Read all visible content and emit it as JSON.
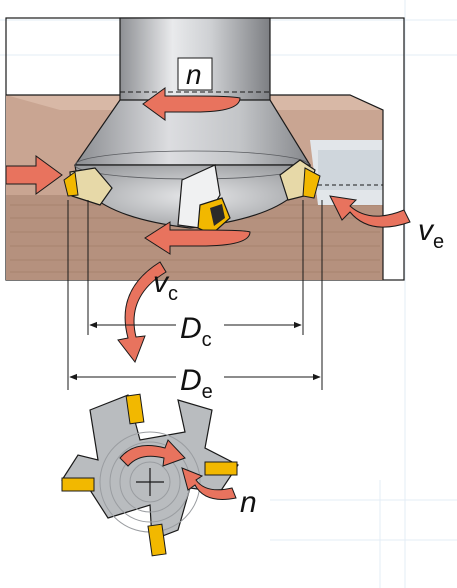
{
  "labels": {
    "n_top": "n",
    "v_e": "v",
    "v_e_sub": "e",
    "v_c": "v",
    "v_c_sub": "c",
    "D_c": "D",
    "D_c_sub": "c",
    "D_e": "D",
    "D_e_sub": "e",
    "n_bottom": "n"
  },
  "colors": {
    "arrow_fill": "#e8735e",
    "workpiece": "#c9a592",
    "workpiece_dark": "#b28a78",
    "insert_yellow": "#f2b800",
    "tool_gray": "#bdbfc2",
    "outline": "#1a1a1a"
  },
  "icons": [
    "feed-arrow-icon",
    "rotation-arrow-icon",
    "cutting-speed-arrow-icon",
    "crosshair-icon"
  ]
}
